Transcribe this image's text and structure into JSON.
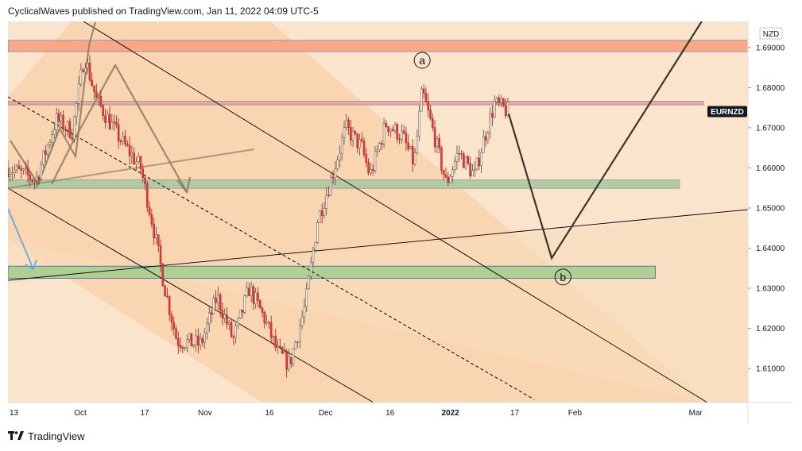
{
  "header": {
    "publisher": "CyclicalWaves published on TradingView.com, Jan 11, 2022 04:09 UTC-5"
  },
  "brand": {
    "name": "TradingView",
    "logo_icon": "tradingview-logo-icon"
  },
  "chart_data": {
    "type": "candlestick",
    "symbol_label": "EURNZD",
    "currency_label": "NZD",
    "ylim": [
      1.6015,
      1.6965
    ],
    "y_ticks": [
      "1.69000",
      "1.68000",
      "1.67000",
      "1.66000",
      "1.65000",
      "1.64000",
      "1.63000",
      "1.62000",
      "1.61000"
    ],
    "y_tick_values": [
      1.69,
      1.68,
      1.67,
      1.66,
      1.65,
      1.64,
      1.63,
      1.62,
      1.61
    ],
    "x_ticks": [
      "13",
      "Oct",
      "17",
      "Nov",
      "16",
      "Dec",
      "16",
      "2022",
      "17",
      "Feb",
      "Mar"
    ],
    "x_tick_days": [
      0,
      18,
      34,
      49,
      65,
      79,
      95,
      110,
      126,
      141,
      171
    ],
    "x_range_days": [
      0,
      184
    ],
    "last_price": 1.6766,
    "wave_labels": [
      {
        "text": "a",
        "day": 103,
        "price": 1.6868
      },
      {
        "text": "b",
        "day": 138,
        "price": 1.6328
      }
    ],
    "zones": [
      {
        "name": "resistance-zone-top",
        "from_day": 0,
        "to_day": 184,
        "low": 1.689,
        "high": 1.6918,
        "color": "#f9a380"
      },
      {
        "name": "resistance-zone-mid",
        "from_day": 0,
        "to_day": 173,
        "low": 1.6757,
        "high": 1.6766,
        "color": "#e8a199"
      },
      {
        "name": "support-zone-upper",
        "from_day": 0,
        "to_day": 167,
        "low": 1.6549,
        "high": 1.657,
        "color": "#a8cc9e"
      },
      {
        "name": "support-zone-lower",
        "from_day": 0,
        "to_day": 161,
        "low": 1.6325,
        "high": 1.6355,
        "color": "#a6cf8f"
      }
    ],
    "forecast_path": [
      {
        "day": 124.5,
        "price": 1.6735
      },
      {
        "day": 135.2,
        "price": 1.6375
      },
      {
        "day": 172.5,
        "price": 1.6965
      }
    ],
    "candles": {
      "anchors": [
        [
          0,
          1.66
        ],
        [
          7,
          1.657
        ],
        [
          12,
          1.672
        ],
        [
          16,
          1.669
        ],
        [
          19,
          1.688
        ],
        [
          22,
          1.677
        ],
        [
          28,
          1.667
        ],
        [
          33,
          1.66
        ],
        [
          36,
          1.646
        ],
        [
          39,
          1.63
        ],
        [
          42,
          1.617
        ],
        [
          48,
          1.616
        ],
        [
          52,
          1.628
        ],
        [
          56,
          1.617
        ],
        [
          60,
          1.63
        ],
        [
          64,
          1.622
        ],
        [
          67,
          1.614
        ],
        [
          70,
          1.611
        ],
        [
          74,
          1.626
        ],
        [
          77,
          1.647
        ],
        [
          80,
          1.656
        ],
        [
          84,
          1.67
        ],
        [
          88,
          1.665
        ],
        [
          90,
          1.658
        ],
        [
          94,
          1.671
        ],
        [
          98,
          1.668
        ],
        [
          101,
          1.661
        ],
        [
          103,
          1.679
        ],
        [
          106,
          1.668
        ],
        [
          109,
          1.656
        ],
        [
          112,
          1.664
        ],
        [
          116,
          1.658
        ],
        [
          118,
          1.666
        ],
        [
          121,
          1.676
        ],
        [
          124.5,
          1.674
        ]
      ]
    }
  }
}
